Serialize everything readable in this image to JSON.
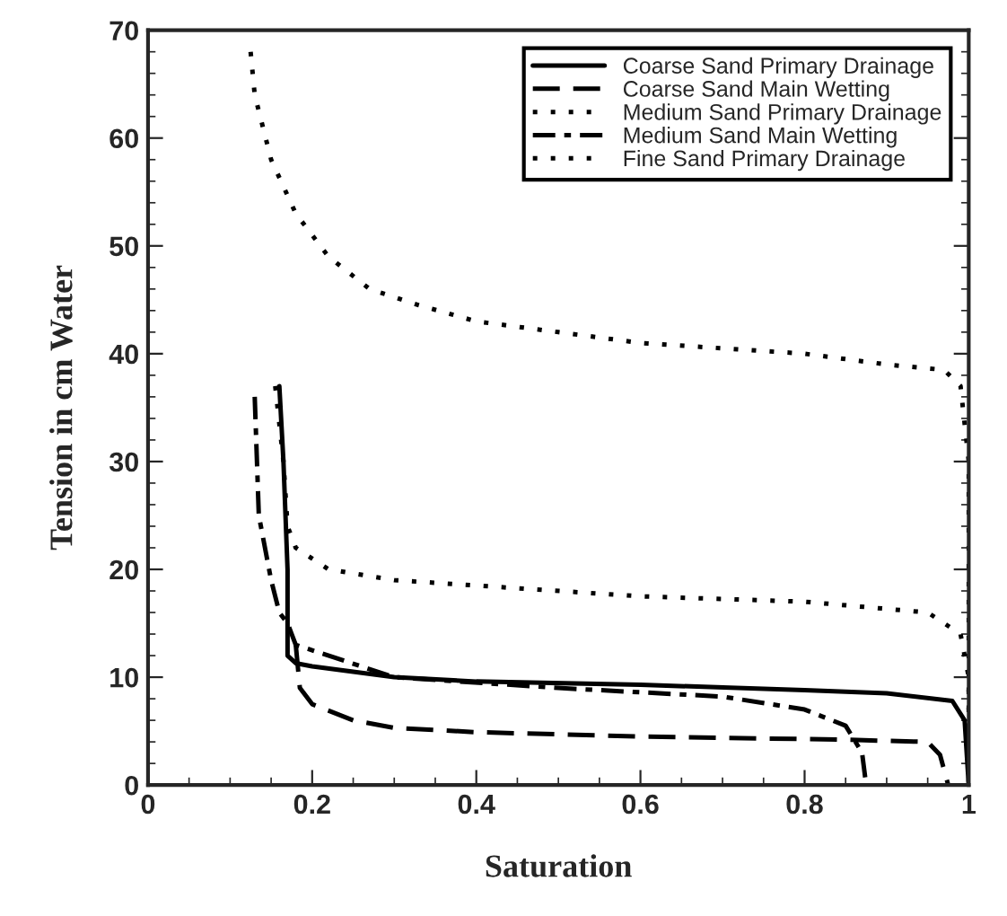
{
  "chart_data": {
    "type": "line",
    "xlabel": "Saturation",
    "ylabel": "Tension in cm Water",
    "xlim": [
      0,
      1
    ],
    "ylim": [
      0,
      70
    ],
    "xticks": [
      0,
      0.2,
      0.4,
      0.6,
      0.8,
      1
    ],
    "yticks": [
      0,
      10,
      20,
      30,
      40,
      50,
      60,
      70
    ],
    "grid": false,
    "legend": "top right",
    "marker": "none",
    "series": [
      {
        "name": "Coarse Sand Primary Drainage",
        "color": "#000000",
        "line_style": "solid",
        "x": [
          0.16,
          0.165,
          0.17,
          0.17,
          0.18,
          0.2,
          0.3,
          0.4,
          0.6,
          0.8,
          0.9,
          0.98,
          0.995,
          1.0
        ],
        "values": [
          37,
          30,
          20,
          12,
          11.3,
          11,
          10,
          9.6,
          9.3,
          8.8,
          8.5,
          7.8,
          6,
          0
        ]
      },
      {
        "name": "Coarse Sand Main Wetting",
        "color": "#000000",
        "line_style": "dashed",
        "x": [
          0.18,
          0.185,
          0.2,
          0.25,
          0.3,
          0.4,
          0.6,
          0.85,
          0.95,
          0.965,
          0.975
        ],
        "values": [
          13,
          9,
          7.5,
          6,
          5.3,
          4.9,
          4.5,
          4.2,
          4,
          2.8,
          0
        ]
      },
      {
        "name": "Medium Sand Primary Drainage",
        "color": "#000000",
        "line_style": "dotted",
        "x": [
          0.155,
          0.165,
          0.17,
          0.18,
          0.22,
          0.3,
          0.4,
          0.6,
          0.8,
          0.95,
          0.99,
          1.0,
          1.0
        ],
        "values": [
          37,
          30,
          24,
          22,
          20,
          19,
          18.5,
          17.5,
          17,
          16,
          14,
          10,
          0
        ]
      },
      {
        "name": "Medium Sand Main Wetting",
        "color": "#000000",
        "line_style": "dashdot",
        "x": [
          0.13,
          0.135,
          0.15,
          0.16,
          0.17,
          0.18,
          0.2,
          0.3,
          0.5,
          0.7,
          0.8,
          0.85,
          0.87,
          0.875
        ],
        "values": [
          36,
          25,
          19,
          16,
          15,
          13,
          12.5,
          10,
          9,
          8.2,
          7,
          5.5,
          3,
          0
        ]
      },
      {
        "name": "Fine Sand Primary Drainage",
        "color": "#000000",
        "line_style": "dotted",
        "x": [
          0.125,
          0.13,
          0.15,
          0.18,
          0.22,
          0.27,
          0.33,
          0.4,
          0.5,
          0.6,
          0.7,
          0.8,
          0.9,
          0.97,
          0.99,
          1.0,
          1.0
        ],
        "values": [
          68,
          64,
          58,
          53,
          49,
          46,
          44.5,
          43,
          42,
          41,
          40.5,
          40,
          39,
          38.5,
          37,
          30,
          0
        ]
      }
    ]
  }
}
